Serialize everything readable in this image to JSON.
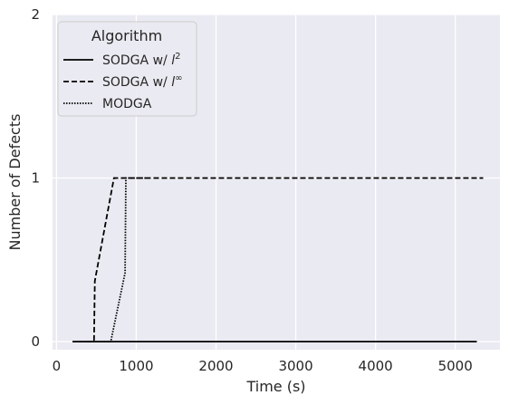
{
  "chart_data": {
    "type": "line",
    "title": "",
    "xlabel": "Time (s)",
    "ylabel": "Number of Defects",
    "xlim": [
      -50,
      5560
    ],
    "ylim": [
      -0.05,
      2
    ],
    "xticks": [
      0,
      1000,
      2000,
      3000,
      4000,
      5000
    ],
    "xtick_labels": [
      "0",
      "1000",
      "2000",
      "3000",
      "4000",
      "5000"
    ],
    "yticks": [
      0,
      1,
      2
    ],
    "ytick_labels": [
      "0",
      "1",
      "2"
    ],
    "grid": true,
    "background": "#eaeaf2",
    "grid_color": "#ffffff",
    "legend": {
      "title": "Algorithm",
      "placement": "top-left"
    },
    "series": [
      {
        "name": "SODGA w/ l²",
        "label_base": "SODGA w/ ",
        "label_var": "l",
        "label_sup": "2",
        "style": "solid",
        "color": "#000000",
        "x": [
          200,
          5270
        ],
        "y": [
          0,
          0
        ]
      },
      {
        "name": "SODGA w/ l∞",
        "label_base": "SODGA w/ ",
        "label_var": "l",
        "label_sup": "∞",
        "style": "dashed",
        "color": "#000000",
        "x": [
          380,
          470,
          480,
          720,
          740,
          5350
        ],
        "y": [
          0,
          0,
          0.37,
          1,
          1,
          1
        ]
      },
      {
        "name": "MODGA",
        "label_base": "MODGA",
        "label_var": "",
        "label_sup": "",
        "style": "dotted",
        "color": "#000000",
        "x": [
          220,
          680,
          860,
          870,
          1120
        ],
        "y": [
          0,
          0,
          0.42,
          1,
          1
        ]
      }
    ]
  }
}
